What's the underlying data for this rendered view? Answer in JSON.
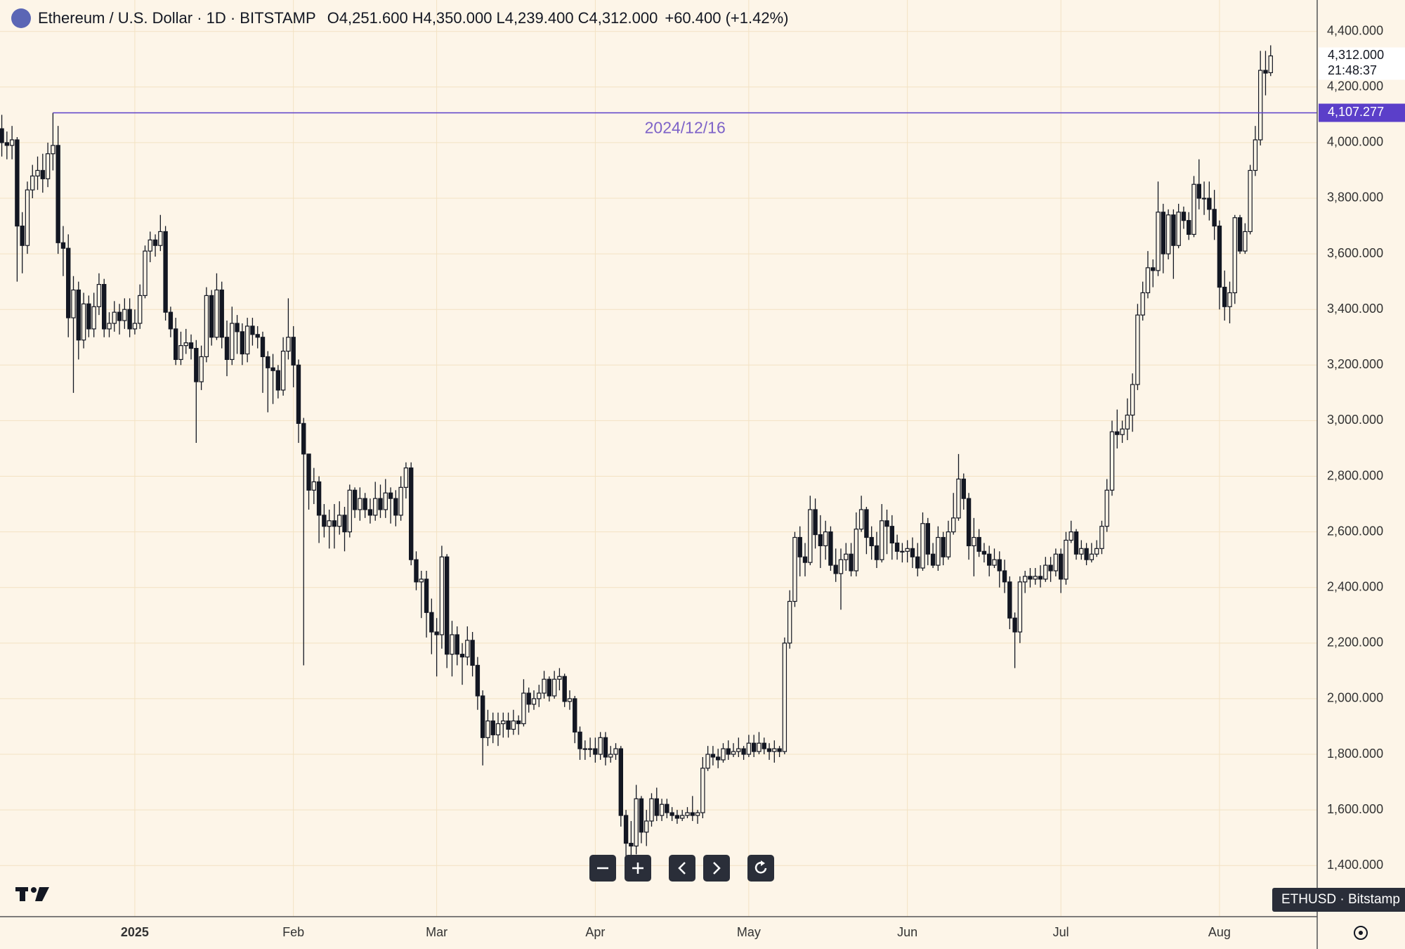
{
  "chart_data": {
    "type": "candlestick",
    "header": {
      "title": "Ethereum / U.S. Dollar · 1D · BITSTAMP",
      "fields": [
        {
          "key": "O",
          "value": "4,251.600"
        },
        {
          "key": "H",
          "value": "4,350.000"
        },
        {
          "key": "L",
          "value": "4,239.400"
        },
        {
          "key": "C",
          "value": "4,312.000"
        }
      ],
      "change": "+60.400 (+1.42%)"
    },
    "last_price_label": "4,312.000",
    "countdown": "21:48:37",
    "annotation": {
      "value": 4107.277,
      "label": "4,107.277",
      "text": "2024/12/16"
    },
    "symbol_tag": "ETHUSD · Bitstamp",
    "up_color": "#fdf5e8",
    "down_color": "#131722",
    "grid": true,
    "ylim": [
      1216,
      4513
    ],
    "yticks": [
      {
        "value": 1400,
        "label": "1,400.000"
      },
      {
        "value": 1600,
        "label": "1,600.000"
      },
      {
        "value": 1800,
        "label": "1,800.000"
      },
      {
        "value": 2000,
        "label": "2,000.000"
      },
      {
        "value": 2200,
        "label": "2,200.000"
      },
      {
        "value": 2400,
        "label": "2,400.000"
      },
      {
        "value": 2600,
        "label": "2,600.000"
      },
      {
        "value": 2800,
        "label": "2,800.000"
      },
      {
        "value": 3000,
        "label": "3,000.000"
      },
      {
        "value": 3200,
        "label": "3,200.000"
      },
      {
        "value": 3400,
        "label": "3,400.000"
      },
      {
        "value": 3600,
        "label": "3,600.000"
      },
      {
        "value": 3800,
        "label": "3,800.000"
      },
      {
        "value": 4000,
        "label": "4,000.000"
      },
      {
        "value": 4200,
        "label": "4,200.000"
      },
      {
        "value": 4400,
        "label": "4,400.000"
      }
    ],
    "categories": [
      null,
      null,
      null,
      null,
      null,
      null,
      null,
      null,
      null,
      null,
      null,
      null,
      null,
      null,
      null,
      null,
      null,
      null,
      null,
      null,
      null,
      null,
      null,
      null,
      null,
      null,
      "2025",
      null,
      null,
      null,
      null,
      null,
      null,
      null,
      null,
      null,
      null,
      null,
      null,
      null,
      null,
      null,
      null,
      null,
      null,
      null,
      null,
      null,
      null,
      null,
      null,
      null,
      null,
      null,
      null,
      null,
      null,
      "Feb",
      null,
      null,
      null,
      null,
      null,
      null,
      null,
      null,
      null,
      null,
      null,
      null,
      null,
      null,
      null,
      null,
      null,
      null,
      null,
      null,
      null,
      null,
      null,
      null,
      null,
      null,
      null,
      "Mar",
      null,
      null,
      null,
      null,
      null,
      null,
      null,
      null,
      null,
      null,
      null,
      null,
      null,
      null,
      null,
      null,
      null,
      null,
      null,
      null,
      null,
      null,
      null,
      null,
      null,
      null,
      null,
      null,
      null,
      null,
      "Apr",
      null,
      null,
      null,
      null,
      null,
      null,
      null,
      null,
      null,
      null,
      null,
      null,
      null,
      null,
      null,
      null,
      null,
      null,
      null,
      null,
      null,
      null,
      null,
      null,
      null,
      null,
      null,
      null,
      null,
      "May",
      null,
      null,
      null,
      null,
      null,
      null,
      null,
      null,
      null,
      null,
      null,
      null,
      null,
      null,
      null,
      null,
      null,
      null,
      null,
      null,
      null,
      null,
      null,
      null,
      null,
      null,
      null,
      null,
      null,
      null,
      "Jun",
      null,
      null,
      null,
      null,
      null,
      null,
      null,
      null,
      null,
      null,
      null,
      null,
      null,
      null,
      null,
      null,
      null,
      null,
      null,
      null,
      null,
      null,
      null,
      null,
      null,
      null,
      null,
      null,
      null,
      "Jul",
      null,
      null,
      null,
      null,
      null,
      null,
      null,
      null,
      null,
      null,
      null,
      null,
      null,
      null,
      null,
      null,
      null,
      null,
      null,
      null,
      null,
      null,
      null,
      null,
      null,
      null,
      null,
      null,
      null,
      null,
      "Aug",
      null,
      null,
      null,
      null,
      null,
      null,
      null,
      null,
      null,
      null
    ],
    "open": [
      4050,
      4000,
      3990,
      4010,
      3700,
      3630,
      3830,
      3880,
      3900,
      3870,
      3960,
      3990,
      3640,
      3620,
      3370,
      3470,
      3290,
      3420,
      3330,
      3410,
      3490,
      3330,
      3350,
      3390,
      3360,
      3400,
      3330,
      3350,
      3450,
      3610,
      3650,
      3630,
      3680,
      3390,
      3330,
      3220,
      3270,
      3280,
      3260,
      3140,
      3230,
      3450,
      3300,
      3470,
      3300,
      3220,
      3350,
      3320,
      3240,
      3340,
      3310,
      3300,
      3230,
      3190,
      3180,
      3110,
      3250,
      3300,
      3200,
      2990,
      2880,
      2750,
      2780,
      2660,
      2620,
      2640,
      2620,
      2660,
      2600,
      2750,
      2680,
      2720,
      2680,
      2660,
      2720,
      2680,
      2740,
      2720,
      2660,
      2760,
      2830,
      2500,
      2420,
      2430,
      2310,
      2240,
      2230,
      2510,
      2160,
      2230,
      2160,
      2150,
      2210,
      2120,
      2010,
      1860,
      1920,
      1870,
      1910,
      1920,
      1890,
      1920,
      1910,
      2020,
      1980,
      2000,
      2020,
      2070,
      2010,
      2070,
      2080,
      1990,
      2000,
      1880,
      1820,
      1820,
      1820,
      1800,
      1860,
      1790,
      1800,
      1820,
      1580,
      1480,
      1470,
      1640,
      1520,
      1560,
      1640,
      1580,
      1620,
      1590,
      1580,
      1570,
      1580,
      1590,
      1580,
      1590,
      1750,
      1800,
      1790,
      1780,
      1820,
      1800,
      1810,
      1820,
      1800,
      1840,
      1810,
      1840,
      1820,
      1810,
      1820,
      1810,
      2200,
      2350,
      2580,
      2510,
      2490,
      2680,
      2590,
      2550,
      2600,
      2480,
      2450,
      2500,
      2520,
      2460,
      2610,
      2680,
      2580,
      2550,
      2500,
      2640,
      2620,
      2560,
      2530,
      2530,
      2540,
      2510,
      2470,
      2630,
      2520,
      2480,
      2580,
      2510,
      2600,
      2650,
      2790,
      2720,
      2550,
      2580,
      2530,
      2520,
      2480,
      2500,
      2460,
      2420,
      2290,
      2240,
      2420,
      2440,
      2430,
      2440,
      2430,
      2480,
      2460,
      2520,
      2430,
      2570,
      2600,
      2520,
      2540,
      2500,
      2520,
      2540,
      2620,
      2750,
      2960,
      2950,
      2970,
      3020,
      3130,
      3380,
      3460,
      3550,
      3540,
      3750,
      3600,
      3740,
      3630,
      3750,
      3720,
      3670,
      3850,
      3800,
      3800,
      3760,
      3700,
      3480,
      3410,
      3460,
      3730,
      3610,
      3680,
      3900,
      4010,
      4260,
      4251.6
    ],
    "high": [
      4100,
      4040,
      4060,
      4020,
      3750,
      3860,
      3920,
      3950,
      3960,
      4000,
      4107.277,
      4060,
      3700,
      3670,
      3520,
      3500,
      3460,
      3450,
      3460,
      3530,
      3510,
      3390,
      3430,
      3420,
      3440,
      3440,
      3400,
      3490,
      3630,
      3680,
      3670,
      3740,
      3700,
      3410,
      3370,
      3320,
      3330,
      3310,
      3290,
      3270,
      3480,
      3470,
      3530,
      3500,
      3360,
      3410,
      3380,
      3350,
      3370,
      3370,
      3340,
      3320,
      3250,
      3240,
      3200,
      3300,
      3440,
      3340,
      3220,
      3010,
      2880,
      2830,
      2800,
      2700,
      2680,
      2700,
      2710,
      2690,
      2770,
      2760,
      2760,
      2740,
      2720,
      2780,
      2770,
      2790,
      2760,
      2750,
      2800,
      2850,
      2850,
      2530,
      2460,
      2460,
      2360,
      2290,
      2550,
      2520,
      2280,
      2260,
      2200,
      2260,
      2240,
      2150,
      2030,
      1960,
      1950,
      1950,
      1950,
      1950,
      1960,
      1940,
      2070,
      2040,
      2030,
      2050,
      2100,
      2080,
      2100,
      2110,
      2090,
      2030,
      2010,
      1900,
      1850,
      1860,
      1860,
      1880,
      1880,
      1830,
      1840,
      1830,
      1600,
      1560,
      1690,
      1650,
      1600,
      1660,
      1680,
      1640,
      1640,
      1610,
      1600,
      1600,
      1610,
      1650,
      1600,
      1790,
      1830,
      1830,
      1820,
      1840,
      1850,
      1840,
      1860,
      1830,
      1870,
      1870,
      1880,
      1860,
      1840,
      1850,
      1830,
      2220,
      2390,
      2600,
      2620,
      2560,
      2730,
      2720,
      2660,
      2640,
      2620,
      2540,
      2540,
      2560,
      2560,
      2670,
      2730,
      2690,
      2620,
      2600,
      2700,
      2680,
      2660,
      2590,
      2560,
      2570,
      2580,
      2560,
      2670,
      2650,
      2560,
      2620,
      2600,
      2640,
      2740,
      2880,
      2810,
      2740,
      2650,
      2610,
      2560,
      2550,
      2540,
      2530,
      2500,
      2440,
      2310,
      2440,
      2460,
      2470,
      2470,
      2480,
      2510,
      2510,
      2540,
      2540,
      2600,
      2640,
      2610,
      2570,
      2560,
      2560,
      2570,
      2640,
      2790,
      3000,
      3040,
      3000,
      3080,
      3170,
      3420,
      3500,
      3610,
      3580,
      3860,
      3780,
      3760,
      3760,
      3780,
      3770,
      3750,
      3880,
      3940,
      3860,
      3860,
      3830,
      3720,
      3540,
      3500,
      3740,
      3740,
      3710,
      3920,
      4060,
      4330,
      4330,
      4350
    ],
    "low": [
      3950,
      3940,
      3940,
      3500,
      3530,
      3600,
      3800,
      3830,
      3820,
      3840,
      3900,
      3600,
      3520,
      3300,
      3100,
      3220,
      3260,
      3300,
      3300,
      3380,
      3300,
      3300,
      3320,
      3310,
      3330,
      3300,
      3310,
      3330,
      3440,
      3570,
      3590,
      3610,
      3360,
      3300,
      3200,
      3200,
      3240,
      3220,
      2920,
      3110,
      3210,
      3270,
      3290,
      3260,
      3160,
      3200,
      3240,
      3200,
      3210,
      3270,
      3260,
      3100,
      3030,
      3060,
      3080,
      3090,
      3220,
      3120,
      2920,
      2120,
      2680,
      2700,
      2560,
      2580,
      2540,
      2540,
      2590,
      2530,
      2580,
      2650,
      2640,
      2650,
      2630,
      2640,
      2650,
      2650,
      2630,
      2620,
      2640,
      2720,
      2480,
      2390,
      2290,
      2220,
      2160,
      2080,
      2180,
      2110,
      2080,
      2120,
      2050,
      2120,
      2080,
      1960,
      1760,
      1830,
      1840,
      1830,
      1860,
      1860,
      1870,
      1870,
      1900,
      1950,
      1960,
      1970,
      2000,
      1990,
      2000,
      2030,
      1970,
      1960,
      1840,
      1780,
      1780,
      1790,
      1770,
      1780,
      1760,
      1770,
      1780,
      1540,
      1410,
      1385,
      1440,
      1480,
      1470,
      1540,
      1560,
      1560,
      1570,
      1560,
      1550,
      1560,
      1570,
      1560,
      1550,
      1570,
      1740,
      1760,
      1750,
      1770,
      1780,
      1790,
      1790,
      1780,
      1790,
      1790,
      1800,
      1800,
      1780,
      1770,
      1790,
      1800,
      2180,
      2330,
      2440,
      2440,
      2480,
      2540,
      2470,
      2500,
      2460,
      2420,
      2320,
      2460,
      2440,
      2440,
      2600,
      2520,
      2500,
      2470,
      2490,
      2520,
      2500,
      2500,
      2490,
      2490,
      2470,
      2440,
      2460,
      2480,
      2470,
      2460,
      2480,
      2500,
      2590,
      2640,
      2680,
      2500,
      2440,
      2510,
      2490,
      2440,
      2470,
      2400,
      2380,
      2250,
      2110,
      2200,
      2380,
      2400,
      2410,
      2400,
      2420,
      2420,
      2440,
      2380,
      2410,
      2560,
      2500,
      2500,
      2480,
      2490,
      2510,
      2520,
      2600,
      2730,
      2900,
      2920,
      2930,
      2960,
      3110,
      3360,
      3440,
      3480,
      3520,
      3530,
      3580,
      3510,
      3620,
      3690,
      3650,
      3660,
      3760,
      3740,
      3720,
      3650,
      3400,
      3360,
      3350,
      3420,
      3600,
      3600,
      3670,
      3880,
      3990,
      4170,
      4239.4
    ],
    "close": [
      4000,
      3990,
      4010,
      3700,
      3630,
      3830,
      3880,
      3900,
      3870,
      3960,
      3990,
      3640,
      3620,
      3370,
      3470,
      3290,
      3420,
      3330,
      3410,
      3490,
      3330,
      3350,
      3390,
      3360,
      3400,
      3330,
      3350,
      3450,
      3610,
      3650,
      3630,
      3680,
      3390,
      3330,
      3220,
      3270,
      3280,
      3260,
      3140,
      3230,
      3450,
      3300,
      3470,
      3300,
      3220,
      3350,
      3320,
      3240,
      3340,
      3310,
      3300,
      3230,
      3190,
      3180,
      3110,
      3250,
      3300,
      3200,
      2990,
      2880,
      2750,
      2780,
      2660,
      2620,
      2640,
      2620,
      2660,
      2600,
      2750,
      2680,
      2720,
      2680,
      2660,
      2720,
      2680,
      2740,
      2720,
      2660,
      2760,
      2830,
      2500,
      2420,
      2430,
      2310,
      2240,
      2230,
      2510,
      2160,
      2230,
      2160,
      2150,
      2210,
      2120,
      2010,
      1860,
      1920,
      1870,
      1910,
      1920,
      1890,
      1920,
      1910,
      2020,
      1980,
      2000,
      2020,
      2070,
      2010,
      2070,
      2080,
      1990,
      2000,
      1880,
      1820,
      1820,
      1820,
      1800,
      1860,
      1790,
      1800,
      1820,
      1580,
      1480,
      1470,
      1640,
      1520,
      1560,
      1640,
      1580,
      1620,
      1590,
      1580,
      1570,
      1580,
      1590,
      1580,
      1590,
      1750,
      1800,
      1790,
      1780,
      1820,
      1800,
      1810,
      1820,
      1800,
      1840,
      1810,
      1840,
      1820,
      1810,
      1820,
      1810,
      2200,
      2350,
      2580,
      2510,
      2490,
      2680,
      2590,
      2550,
      2600,
      2480,
      2450,
      2500,
      2520,
      2460,
      2610,
      2680,
      2580,
      2550,
      2500,
      2640,
      2620,
      2560,
      2530,
      2530,
      2540,
      2510,
      2470,
      2630,
      2520,
      2480,
      2580,
      2510,
      2600,
      2650,
      2790,
      2720,
      2550,
      2580,
      2530,
      2520,
      2480,
      2500,
      2460,
      2420,
      2290,
      2240,
      2420,
      2440,
      2430,
      2440,
      2430,
      2480,
      2460,
      2520,
      2430,
      2570,
      2600,
      2520,
      2540,
      2500,
      2520,
      2540,
      2620,
      2750,
      2960,
      2950,
      2970,
      3020,
      3130,
      3380,
      3460,
      3550,
      3540,
      3750,
      3600,
      3740,
      3630,
      3750,
      3720,
      3670,
      3850,
      3800,
      3800,
      3760,
      3700,
      3480,
      3410,
      3460,
      3730,
      3610,
      3680,
      3900,
      4010,
      4260,
      4250,
      4312
    ]
  }
}
